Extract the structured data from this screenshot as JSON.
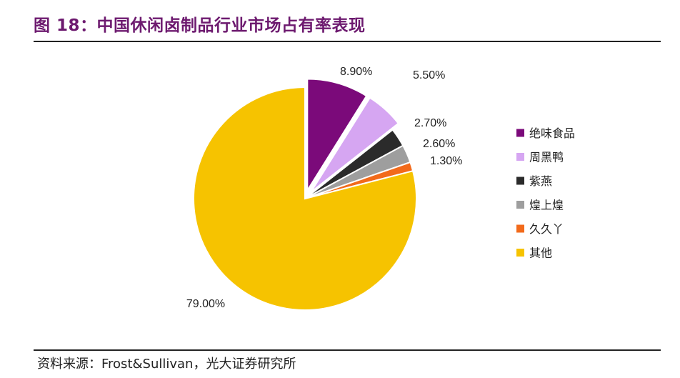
{
  "figure": {
    "title": "图 18：中国休闲卤制品行业市场占有率表现",
    "source": "资料来源：Frost&Sullivan，光大证券研究所"
  },
  "chart_data": {
    "type": "pie",
    "title": "",
    "slices": [
      {
        "name": "绝味食品",
        "value": 8.9,
        "label": "8.90%",
        "color": "#7b0a7a",
        "exploded": true
      },
      {
        "name": "周黑鸭",
        "value": 5.5,
        "label": "5.50%",
        "color": "#d6a6f2",
        "exploded": true
      },
      {
        "name": "紫燕",
        "value": 2.7,
        "label": "2.70%",
        "color": "#2b2b2b",
        "exploded": false
      },
      {
        "name": "煌上煌",
        "value": 2.6,
        "label": "2.60%",
        "color": "#9e9e9e",
        "exploded": false
      },
      {
        "name": "久久丫",
        "value": 1.3,
        "label": "1.30%",
        "color": "#f26a1b",
        "exploded": false
      },
      {
        "name": "其他",
        "value": 79.0,
        "label": "79.00%",
        "color": "#f6c300",
        "exploded": false
      }
    ],
    "legend_position": "right",
    "start_angle_deg": 0,
    "direction": "clockwise"
  }
}
